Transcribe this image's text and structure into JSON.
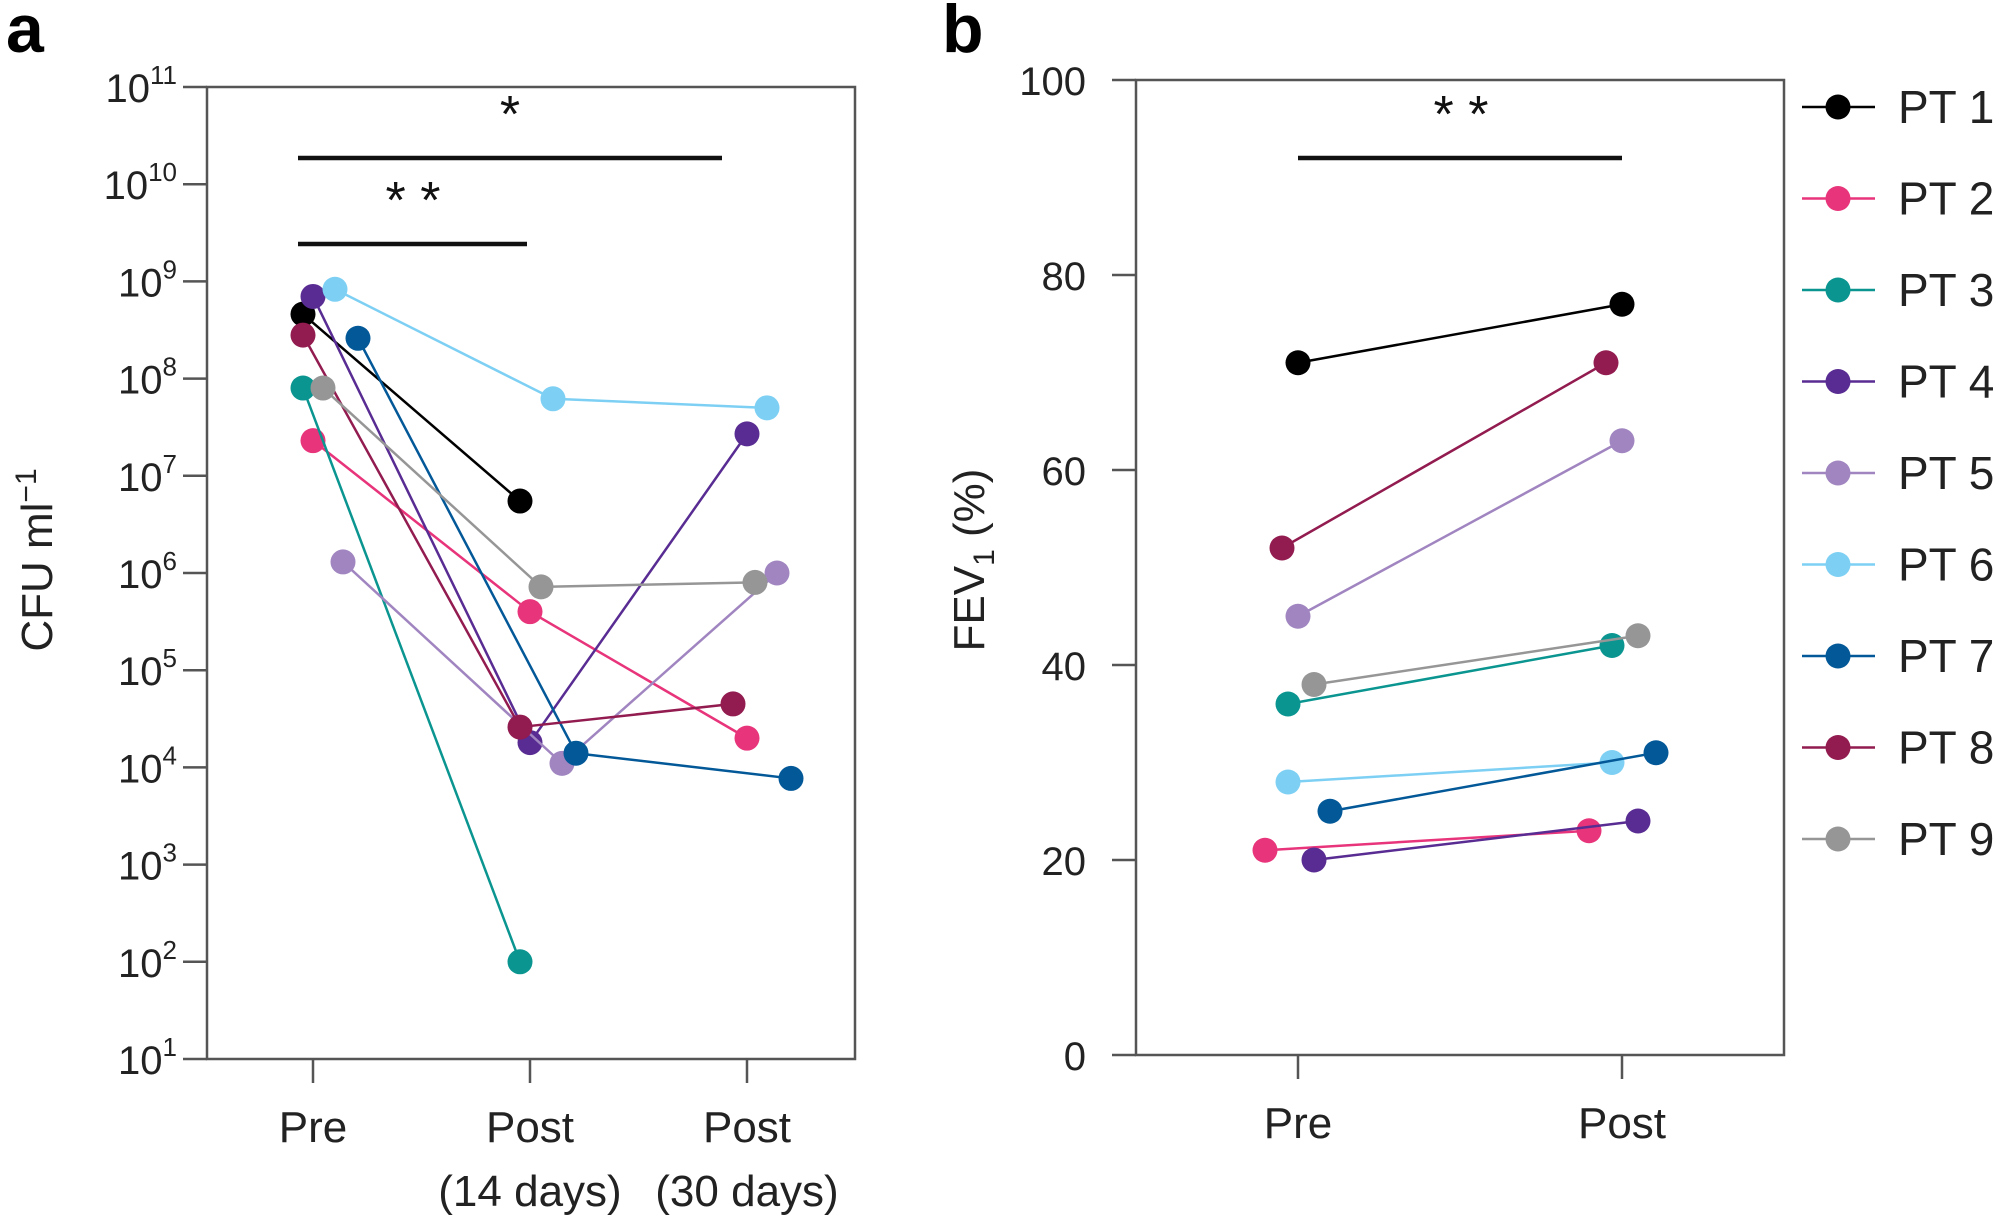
{
  "chart_data": [
    {
      "panel": "a",
      "type": "line",
      "scale": "log",
      "title": "",
      "xlabel": "",
      "ylabel": "CFU ml",
      "ylabel_superscript": "−1",
      "categories": [
        {
          "line1": "Pre",
          "line2": ""
        },
        {
          "line1": "Post",
          "line2": "(14 days)"
        },
        {
          "line1": "Post",
          "line2": "(30 days)"
        }
      ],
      "ylim_exponent": [
        1,
        11
      ],
      "yticks": [
        {
          "base": "10",
          "exp": "11"
        },
        {
          "base": "10",
          "exp": "10"
        },
        {
          "base": "10",
          "exp": "9"
        },
        {
          "base": "10",
          "exp": "8"
        },
        {
          "base": "10",
          "exp": "7"
        },
        {
          "base": "10",
          "exp": "6"
        },
        {
          "base": "10",
          "exp": "5"
        },
        {
          "base": "10",
          "exp": "4"
        },
        {
          "base": "10",
          "exp": "3"
        },
        {
          "base": "10",
          "exp": "2"
        },
        {
          "base": "10",
          "exp": "1"
        }
      ],
      "significance": [
        {
          "from": 0,
          "to": 2,
          "label": "*"
        },
        {
          "from": 0,
          "to": 1,
          "label": "**"
        }
      ],
      "series": [
        {
          "name": "PT 1",
          "values": [
            460000000.0,
            5500000.0,
            null
          ]
        },
        {
          "name": "PT 2",
          "values": [
            23000000.0,
            400000.0,
            20000.0
          ]
        },
        {
          "name": "PT 3",
          "values": [
            80000000.0,
            100.0,
            null
          ]
        },
        {
          "name": "PT 4",
          "values": [
            700000000.0,
            18000.0,
            27000000.0
          ]
        },
        {
          "name": "PT 5",
          "values": [
            1300000.0,
            11000.0,
            1000000.0
          ]
        },
        {
          "name": "PT 6",
          "values": [
            830000000.0,
            62000000.0,
            50000000.0
          ]
        },
        {
          "name": "PT 7",
          "values": [
            260000000.0,
            14000.0,
            7700.0
          ]
        },
        {
          "name": "PT 8",
          "values": [
            280000000.0,
            26000.0,
            45000.0
          ]
        },
        {
          "name": "PT 9",
          "values": [
            80000000.0,
            720000.0,
            800000.0
          ]
        }
      ]
    },
    {
      "panel": "b",
      "type": "line",
      "title": "",
      "xlabel": "",
      "ylabel": "FEV",
      "ylabel_subscript": "1",
      "ylabel_suffix": " (%)",
      "categories": [
        {
          "line1": "Pre",
          "line2": ""
        },
        {
          "line1": "Post",
          "line2": ""
        }
      ],
      "ylim": [
        0,
        100
      ],
      "yticks": [
        "0",
        "20",
        "40",
        "60",
        "80",
        "100"
      ],
      "significance": [
        {
          "from": 0,
          "to": 1,
          "label": "**"
        }
      ],
      "series": [
        {
          "name": "PT 1",
          "values": [
            71,
            77
          ]
        },
        {
          "name": "PT 2",
          "values": [
            21,
            23
          ]
        },
        {
          "name": "PT 3",
          "values": [
            36,
            42
          ]
        },
        {
          "name": "PT 4",
          "values": [
            20,
            24
          ]
        },
        {
          "name": "PT 5",
          "values": [
            45,
            63
          ]
        },
        {
          "name": "PT 6",
          "values": [
            28,
            30
          ]
        },
        {
          "name": "PT 7",
          "values": [
            25,
            31
          ]
        },
        {
          "name": "PT 8",
          "values": [
            52,
            71
          ]
        },
        {
          "name": "PT 9",
          "values": [
            38,
            43
          ]
        }
      ]
    }
  ],
  "legend": {
    "placement": "right",
    "entries": [
      {
        "label": "PT 1",
        "color": "#000000"
      },
      {
        "label": "PT 2",
        "color": "#e8347a"
      },
      {
        "label": "PT 3",
        "color": "#0a9590"
      },
      {
        "label": "PT 4",
        "color": "#582c92"
      },
      {
        "label": "PT 5",
        "color": "#a085c0"
      },
      {
        "label": "PT 6",
        "color": "#7dd0f4"
      },
      {
        "label": "PT 7",
        "color": "#035898"
      },
      {
        "label": "PT 8",
        "color": "#921b4f"
      },
      {
        "label": "PT 9",
        "color": "#969696"
      }
    ]
  },
  "panel_labels": [
    "a",
    "b"
  ]
}
